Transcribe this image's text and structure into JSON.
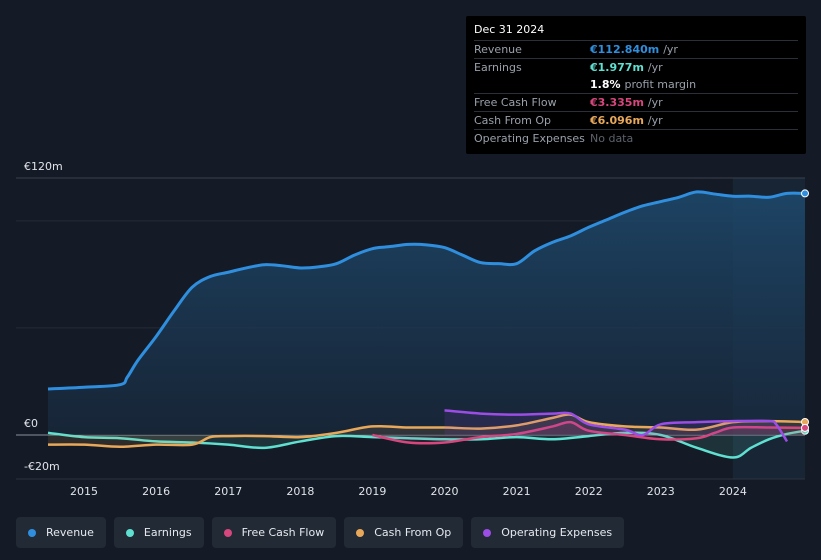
{
  "tooltip": {
    "date": "Dec 31 2024",
    "rows": [
      {
        "label": "Revenue",
        "value": "€112.840m",
        "unit": "/yr",
        "color": "#2f8fde"
      },
      {
        "label": "Earnings",
        "value": "€1.977m",
        "unit": "/yr",
        "color": "#5fe0d0"
      },
      {
        "label": "",
        "value": "1.8%",
        "unit": "profit margin",
        "color": "#ffffff"
      },
      {
        "label": "Free Cash Flow",
        "value": "€3.335m",
        "unit": "/yr",
        "color": "#d6477e"
      },
      {
        "label": "Cash From Op",
        "value": "€6.096m",
        "unit": "/yr",
        "color": "#e8a85a"
      },
      {
        "label": "Operating Expenses",
        "value": "No data",
        "unit": "",
        "color": "#5c616b"
      }
    ]
  },
  "legend": [
    {
      "label": "Revenue",
      "color": "#2f8fde"
    },
    {
      "label": "Earnings",
      "color": "#5fe0d0"
    },
    {
      "label": "Free Cash Flow",
      "color": "#d6477e"
    },
    {
      "label": "Cash From Op",
      "color": "#e8a85a"
    },
    {
      "label": "Operating Expenses",
      "color": "#9b4de6"
    }
  ],
  "chart_data": {
    "type": "line",
    "title": "",
    "y_top_label": "€120m",
    "y_zero_label": "€0",
    "y_bottom_label": "-€20m",
    "ylim": [
      -20,
      120
    ],
    "xlim": [
      2014.5,
      2025.0
    ],
    "x_ticks": [
      "2015",
      "2016",
      "2017",
      "2018",
      "2019",
      "2020",
      "2021",
      "2022",
      "2023",
      "2024"
    ],
    "highlight_start": 2024.0,
    "series": [
      {
        "name": "Revenue",
        "color": "#2f8fde",
        "fill": true,
        "x": [
          2014.5,
          2015.0,
          2015.5,
          2015.6,
          2015.75,
          2016.0,
          2016.25,
          2016.5,
          2016.75,
          2017.0,
          2017.25,
          2017.5,
          2017.75,
          2018.0,
          2018.25,
          2018.5,
          2018.75,
          2019.0,
          2019.25,
          2019.5,
          2019.75,
          2020.0,
          2020.25,
          2020.5,
          2020.75,
          2021.0,
          2021.25,
          2021.5,
          2021.75,
          2022.0,
          2022.25,
          2022.5,
          2022.75,
          2023.0,
          2023.25,
          2023.5,
          2023.75,
          2024.0,
          2024.25,
          2024.5,
          2024.75,
          2025.0
        ],
        "values": [
          21.5,
          22.3,
          23.5,
          27,
          35,
          46,
          58,
          69,
          74,
          76,
          78,
          79.5,
          79,
          78,
          78.5,
          80,
          84,
          87,
          88,
          89,
          88.8,
          87.5,
          84,
          80.5,
          80,
          80,
          86,
          90,
          93,
          97,
          100.5,
          104,
          107,
          109,
          111,
          113.5,
          112.5,
          111.5,
          111.5,
          111,
          112.8,
          112.8
        ]
      },
      {
        "name": "Earnings",
        "color": "#5fe0d0",
        "fill": false,
        "x": [
          2014.5,
          2015.0,
          2015.5,
          2016.0,
          2016.5,
          2017.0,
          2017.5,
          2018.0,
          2018.5,
          2019.0,
          2019.5,
          2020.0,
          2020.5,
          2021.0,
          2021.5,
          2022.0,
          2022.5,
          2023.0,
          2023.5,
          2024.0,
          2024.25,
          2024.5,
          2024.75,
          2025.0
        ],
        "values": [
          1,
          -1,
          -1.5,
          -3,
          -3.5,
          -4.5,
          -6,
          -3,
          -0.5,
          -1,
          -1.5,
          -2,
          -2,
          -1,
          -2,
          -0.5,
          1,
          0,
          -6,
          -10.5,
          -6,
          -2,
          0.5,
          1.977
        ]
      },
      {
        "name": "Free Cash Flow",
        "color": "#d6477e",
        "fill": false,
        "x": [
          2019.0,
          2019.5,
          2020.0,
          2020.5,
          2021.0,
          2021.5,
          2021.75,
          2022.0,
          2022.5,
          2023.0,
          2023.5,
          2023.75,
          2024.0,
          2024.5,
          2025.0
        ],
        "values": [
          0,
          -3.5,
          -3.5,
          -1,
          0.5,
          4,
          6,
          2,
          0,
          -2,
          -1.5,
          1,
          3.5,
          3.5,
          3.335
        ]
      },
      {
        "name": "Cash From Op",
        "color": "#e8a85a",
        "fill": false,
        "x": [
          2014.5,
          2015.0,
          2015.5,
          2016.0,
          2016.5,
          2016.75,
          2017.0,
          2017.5,
          2018.0,
          2018.5,
          2019.0,
          2019.5,
          2020.0,
          2020.5,
          2021.0,
          2021.5,
          2021.75,
          2022.0,
          2022.5,
          2023.0,
          2023.5,
          2024.0,
          2024.5,
          2025.0
        ],
        "values": [
          -4.5,
          -4.5,
          -5.5,
          -4.5,
          -4.5,
          -1,
          -0.5,
          -0.5,
          -1,
          1,
          4,
          3.5,
          3.5,
          3,
          4.5,
          8,
          9.5,
          6,
          4,
          3.5,
          2.5,
          6,
          6.5,
          6.096
        ]
      },
      {
        "name": "Operating Expenses",
        "color": "#9b4de6",
        "fill": false,
        "x": [
          2020.0,
          2020.5,
          2021.0,
          2021.5,
          2021.75,
          2022.0,
          2022.5,
          2022.75,
          2023.0,
          2023.5,
          2024.0,
          2024.5,
          2024.6,
          2024.75
        ],
        "values": [
          11.5,
          10,
          9.5,
          10,
          10,
          5,
          2.5,
          0,
          5,
          6,
          6.5,
          6.5,
          5,
          -3
        ]
      }
    ]
  }
}
